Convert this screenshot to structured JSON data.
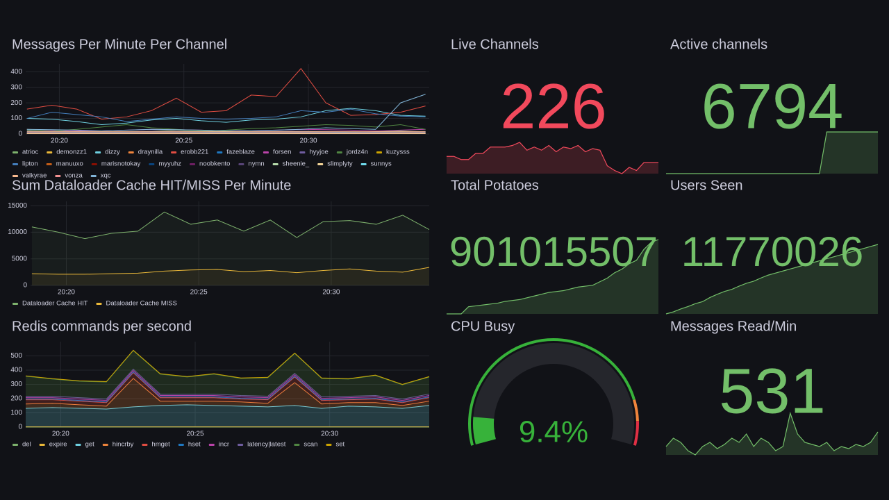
{
  "chart_data": [
    {
      "type": "line",
      "title": "Messages Per Minute Per Channel",
      "x": [
        18.7,
        19.7,
        20.7,
        21.7,
        22.7,
        23.7,
        24.7,
        25.7,
        26.7,
        27.7,
        28.7,
        29.7,
        30.7,
        31.7,
        32.7,
        33.7,
        34.7
      ],
      "xlim": [
        18.65,
        34.85
      ],
      "xticks": [
        {
          "value": 20,
          "label": "20:20"
        },
        {
          "value": 25,
          "label": "20:25"
        },
        {
          "value": 30,
          "label": "20:30"
        }
      ],
      "ylim": [
        0,
        450
      ],
      "yticks": [
        0,
        100,
        200,
        300,
        400
      ],
      "grid": true,
      "series": [
        {
          "name": "atrioc",
          "color": "#7EB26D",
          "values": [
            25,
            20,
            15,
            10,
            15,
            20,
            25,
            20,
            15,
            10,
            15,
            20,
            15,
            10,
            15,
            20,
            15
          ]
        },
        {
          "name": "demonzz1",
          "color": "#EAB839",
          "values": [
            5,
            5,
            5,
            5,
            5,
            5,
            5,
            5,
            5,
            5,
            5,
            5,
            5,
            5,
            5,
            5,
            5
          ]
        },
        {
          "name": "dizzy",
          "color": "#6ED0E0",
          "values": [
            100,
            95,
            80,
            60,
            70,
            90,
            100,
            85,
            75,
            90,
            95,
            110,
            150,
            165,
            150,
            120,
            115
          ]
        },
        {
          "name": "draynilla",
          "color": "#EF843C",
          "values": [
            10,
            10,
            8,
            8,
            10,
            12,
            10,
            8,
            8,
            10,
            10,
            12,
            10,
            8,
            10,
            10,
            10
          ]
        },
        {
          "name": "erobb221",
          "color": "#E24D42",
          "values": [
            160,
            185,
            160,
            95,
            110,
            150,
            230,
            140,
            150,
            250,
            240,
            420,
            200,
            120,
            125,
            140,
            180
          ]
        },
        {
          "name": "fazeblaze",
          "color": "#1F78C1",
          "values": [
            15,
            15,
            12,
            10,
            12,
            15,
            15,
            12,
            10,
            12,
            15,
            15,
            12,
            10,
            12,
            15,
            15
          ]
        },
        {
          "name": "forsen",
          "color": "#BA43A9",
          "values": [
            30,
            25,
            20,
            20,
            25,
            30,
            28,
            25,
            20,
            22,
            25,
            30,
            28,
            25,
            20,
            25,
            30
          ]
        },
        {
          "name": "hyyjoe",
          "color": "#705DA0",
          "values": [
            8,
            8,
            6,
            6,
            8,
            8,
            8,
            6,
            6,
            8,
            8,
            8,
            6,
            6,
            8,
            8,
            8
          ]
        },
        {
          "name": "jordz4n",
          "color": "#508642",
          "values": [
            30,
            20,
            30,
            45,
            60,
            40,
            30,
            20,
            25,
            35,
            40,
            50,
            60,
            55,
            45,
            60,
            30
          ]
        },
        {
          "name": "kuzysss",
          "color": "#CCA300",
          "values": [
            3,
            3,
            3,
            3,
            3,
            3,
            3,
            3,
            3,
            3,
            3,
            3,
            3,
            3,
            3,
            3,
            3
          ]
        },
        {
          "name": "lipton",
          "color": "#447EBC",
          "values": [
            100,
            140,
            125,
            110,
            80,
            95,
            110,
            100,
            95,
            100,
            110,
            150,
            140,
            160,
            130,
            115,
            110
          ]
        },
        {
          "name": "manuuxo",
          "color": "#C15C17",
          "values": [
            5,
            5,
            5,
            5,
            5,
            5,
            5,
            5,
            5,
            5,
            5,
            5,
            5,
            5,
            5,
            5,
            5
          ]
        },
        {
          "name": "marisnotokay",
          "color": "#890F02",
          "values": [
            12,
            10,
            10,
            8,
            10,
            12,
            10,
            10,
            8,
            10,
            12,
            10,
            10,
            8,
            10,
            12,
            10
          ]
        },
        {
          "name": "myyuhz",
          "color": "#0A437C",
          "values": [
            6,
            6,
            6,
            6,
            6,
            6,
            6,
            6,
            6,
            6,
            6,
            6,
            6,
            6,
            6,
            6,
            6
          ]
        },
        {
          "name": "noobkento",
          "color": "#6D1F62",
          "values": [
            4,
            4,
            4,
            4,
            4,
            4,
            4,
            4,
            4,
            4,
            4,
            4,
            4,
            4,
            4,
            4,
            4
          ]
        },
        {
          "name": "nymn",
          "color": "#584477",
          "values": [
            20,
            18,
            15,
            12,
            15,
            20,
            18,
            15,
            12,
            15,
            18,
            20,
            18,
            15,
            12,
            15,
            18
          ]
        },
        {
          "name": "sheenie_",
          "color": "#B7DBAB",
          "values": [
            2,
            2,
            2,
            2,
            2,
            2,
            2,
            2,
            2,
            2,
            2,
            2,
            2,
            2,
            2,
            2,
            2
          ]
        },
        {
          "name": "slimplyty",
          "color": "#F4D598",
          "values": [
            2,
            2,
            2,
            2,
            2,
            2,
            2,
            2,
            2,
            2,
            2,
            2,
            2,
            2,
            2,
            2,
            2
          ]
        },
        {
          "name": "sunnys",
          "color": "#70DBED",
          "values": [
            10,
            10,
            10,
            10,
            10,
            10,
            10,
            10,
            10,
            10,
            10,
            10,
            10,
            10,
            10,
            10,
            10
          ]
        },
        {
          "name": "valkyrae",
          "color": "#F9BA8F",
          "values": [
            15,
            15,
            15,
            15,
            15,
            15,
            15,
            15,
            15,
            15,
            15,
            15,
            15,
            15,
            15,
            15,
            15
          ]
        },
        {
          "name": "vonza",
          "color": "#F29191",
          "values": [
            8,
            8,
            8,
            8,
            8,
            8,
            8,
            8,
            8,
            8,
            8,
            8,
            8,
            8,
            8,
            8,
            8
          ]
        },
        {
          "name": "xqc",
          "color": "#82B5D8",
          "values": [
            30,
            28,
            25,
            20,
            25,
            30,
            28,
            25,
            20,
            22,
            25,
            30,
            40,
            35,
            30,
            200,
            255
          ]
        }
      ]
    },
    {
      "type": "stat",
      "title": "Live Channels",
      "value": 226,
      "color": "#F2495C",
      "sparkline": [
        218,
        218,
        214,
        214,
        222,
        222,
        230,
        230,
        230,
        232,
        236,
        226,
        230,
        226,
        232,
        224,
        230,
        228,
        232,
        224,
        228,
        226,
        206,
        200,
        196,
        204,
        200,
        210,
        210,
        210
      ]
    },
    {
      "type": "stat",
      "title": "Active channels",
      "value": 6794,
      "color": "#73BF69",
      "sparkline": [
        6550,
        6550,
        6550,
        6550,
        6550,
        6550,
        6550,
        6550,
        6550,
        6550,
        6550,
        6550,
        6550,
        6550,
        6550,
        6550,
        6550,
        6550,
        6550,
        6550,
        6550,
        6550,
        6794,
        6794,
        6794,
        6794,
        6794,
        6794,
        6794,
        6794
      ]
    },
    {
      "type": "line",
      "title": "Sum Dataloader Cache HIT/MISS Per Minute",
      "fill": true,
      "x": [
        18.7,
        19.7,
        20.7,
        21.7,
        22.7,
        23.7,
        24.7,
        25.7,
        26.7,
        27.7,
        28.7,
        29.7,
        30.7,
        31.7,
        32.7,
        33.7
      ],
      "xlim": [
        18.65,
        33.7
      ],
      "xticks": [
        {
          "value": 20,
          "label": "20:20"
        },
        {
          "value": 25,
          "label": "20:25"
        },
        {
          "value": 30,
          "label": "20:30"
        }
      ],
      "ylim": [
        0,
        15800
      ],
      "yticks": [
        0,
        5000,
        10000,
        15000
      ],
      "grid": true,
      "series": [
        {
          "name": "Dataloader Cache HIT",
          "color": "#7EB26D",
          "values": [
            11000,
            10000,
            8800,
            9800,
            10200,
            13800,
            11500,
            12300,
            10200,
            12300,
            9000,
            12000,
            12200,
            11500,
            13200,
            10500
          ]
        },
        {
          "name": "Dataloader Cache MISS",
          "color": "#EAB839",
          "values": [
            2200,
            2100,
            2100,
            2200,
            2300,
            2700,
            2900,
            3000,
            2600,
            2800,
            2400,
            2800,
            3100,
            2700,
            2500,
            3400
          ]
        }
      ]
    },
    {
      "type": "stat",
      "title": "Total Potatoes",
      "value": 901015507,
      "color": "#73BF69",
      "sparkline": [
        900600000,
        900600000,
        900600000,
        900640000,
        900645000,
        900650000,
        900655000,
        900660000,
        900670000,
        900675000,
        900680000,
        900690000,
        900700000,
        900710000,
        900720000,
        900725000,
        900730000,
        900740000,
        900750000,
        900755000,
        900760000,
        900780000,
        900800000,
        900830000,
        900850000,
        900880000,
        900900000,
        900960000,
        901000000,
        901015507
      ]
    },
    {
      "type": "stat",
      "title": "Users Seen",
      "value": 11770026,
      "color": "#73BF69",
      "sparkline": [
        11600000,
        11605000,
        11612000,
        11618000,
        11625000,
        11630000,
        11640000,
        11648000,
        11655000,
        11660000,
        11668000,
        11675000,
        11680000,
        11688000,
        11695000,
        11700000,
        11705000,
        11710000,
        11715000,
        11720000,
        11725000,
        11730000,
        11735000,
        11740000,
        11745000,
        11750000,
        11755000,
        11760000,
        11765000,
        11770026
      ]
    },
    {
      "type": "line",
      "title": "Redis commands per second",
      "fill": true,
      "stacked": true,
      "x": [
        18.7,
        19.7,
        20.7,
        21.7,
        22.7,
        23.7,
        24.7,
        25.7,
        26.7,
        27.7,
        28.7,
        29.7,
        30.7,
        31.7,
        32.7,
        33.7
      ],
      "xlim": [
        18.7,
        33.7
      ],
      "xticks": [
        {
          "value": 20,
          "label": "20:20"
        },
        {
          "value": 25,
          "label": "20:25"
        },
        {
          "value": 30,
          "label": "20:30"
        }
      ],
      "ylim": [
        0,
        600
      ],
      "yticks": [
        0,
        100,
        200,
        300,
        400,
        500
      ],
      "grid": true,
      "series": [
        {
          "name": "del",
          "color": "#7EB26D",
          "values": [
            0,
            0,
            0,
            0,
            0,
            0,
            0,
            0,
            0,
            0,
            0,
            0,
            0,
            0,
            0,
            0
          ]
        },
        {
          "name": "expire",
          "color": "#EAB839",
          "values": [
            2,
            2,
            2,
            2,
            2,
            2,
            2,
            2,
            2,
            2,
            2,
            2,
            2,
            2,
            2,
            2
          ]
        },
        {
          "name": "get",
          "color": "#6ED0E0",
          "values": [
            130,
            135,
            130,
            125,
            140,
            150,
            155,
            150,
            145,
            140,
            150,
            130,
            145,
            140,
            130,
            150
          ]
        },
        {
          "name": "hincrby",
          "color": "#EF843C",
          "values": [
            30,
            30,
            25,
            20,
            200,
            30,
            25,
            30,
            30,
            25,
            160,
            30,
            25,
            30,
            20,
            30
          ]
        },
        {
          "name": "hmget",
          "color": "#E24D42",
          "values": [
            30,
            25,
            25,
            25,
            40,
            25,
            25,
            25,
            20,
            25,
            40,
            25,
            20,
            25,
            20,
            25
          ]
        },
        {
          "name": "hset",
          "color": "#1F78C1",
          "values": [
            5,
            5,
            5,
            5,
            5,
            5,
            5,
            5,
            5,
            5,
            5,
            5,
            5,
            5,
            5,
            5
          ]
        },
        {
          "name": "incr",
          "color": "#BA43A9",
          "values": [
            10,
            10,
            10,
            10,
            10,
            10,
            10,
            10,
            10,
            10,
            10,
            10,
            10,
            10,
            10,
            10
          ]
        },
        {
          "name": "latency|latest",
          "color": "#705DA0",
          "values": [
            10,
            10,
            10,
            10,
            10,
            10,
            10,
            10,
            10,
            10,
            10,
            10,
            10,
            10,
            10,
            10
          ]
        },
        {
          "name": "scan",
          "color": "#508642",
          "values": [
            140,
            120,
            115,
            120,
            130,
            140,
            120,
            140,
            120,
            130,
            140,
            130,
            120,
            140,
            100,
            120
          ]
        },
        {
          "name": "set",
          "color": "#CCA300",
          "values": [
            3,
            3,
            3,
            3,
            3,
            3,
            3,
            3,
            3,
            3,
            3,
            3,
            3,
            3,
            3,
            3
          ]
        }
      ]
    },
    {
      "type": "gauge",
      "title": "CPU Busy",
      "value": 9.4,
      "value_label": "9.4%",
      "color": "#37B23A",
      "ylim": [
        0,
        100
      ],
      "thresholds": [
        {
          "value": 0,
          "color": "#37B23A"
        },
        {
          "value": 85,
          "color": "#EF843C"
        },
        {
          "value": 92,
          "color": "#E02F44"
        }
      ]
    },
    {
      "type": "stat",
      "title": "Messages Read/Min",
      "value": 531,
      "color": "#73BF69",
      "sparkline": [
        420,
        440,
        430,
        410,
        400,
        420,
        430,
        415,
        425,
        440,
        430,
        450,
        420,
        440,
        430,
        410,
        420,
        500,
        450,
        430,
        425,
        420,
        430,
        410,
        420,
        415,
        425,
        420,
        430,
        455
      ]
    }
  ]
}
